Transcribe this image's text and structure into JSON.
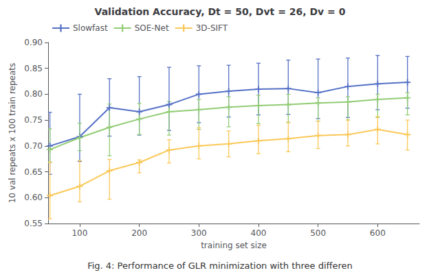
{
  "chart_data": {
    "type": "line",
    "title": "Validation Accuracy, Dt = 50, Dvt = 26, Dv = 0",
    "xlabel": "training set size",
    "ylabel": "10 val repeats x 100 train repeats",
    "caption": "Fig. 4: Performance of GLR minimization with three differen",
    "x": [
      50,
      100,
      150,
      200,
      250,
      300,
      350,
      400,
      450,
      500,
      550,
      600,
      650
    ],
    "series": [
      {
        "name": "Slowfast",
        "values": [
          0.7,
          0.718,
          0.774,
          0.766,
          0.78,
          0.8,
          0.806,
          0.81,
          0.811,
          0.803,
          0.815,
          0.82,
          0.823
        ],
        "yerr_low": [
          0.055,
          0.048,
          0.055,
          0.045,
          0.05,
          0.055,
          0.05,
          0.05,
          0.05,
          0.05,
          0.06,
          0.05,
          0.05
        ],
        "yerr_high": [
          0.065,
          0.082,
          0.056,
          0.068,
          0.072,
          0.055,
          0.05,
          0.05,
          0.055,
          0.065,
          0.055,
          0.055,
          0.05
        ]
      },
      {
        "name": "SOE-Net",
        "values": [
          0.693,
          0.716,
          0.736,
          0.752,
          0.766,
          0.77,
          0.775,
          0.778,
          0.78,
          0.783,
          0.785,
          0.79,
          0.793
        ],
        "yerr_low": [
          0.025,
          0.025,
          0.055,
          0.03,
          0.045,
          0.038,
          0.038,
          0.035,
          0.035,
          0.035,
          0.035,
          0.035,
          0.033
        ],
        "yerr_high": [
          0.04,
          0.028,
          0.045,
          0.03,
          0.02,
          0.02,
          0.02,
          0.02,
          0.02,
          0.01,
          0.01,
          0.01,
          0.01
        ]
      },
      {
        "name": "3D-SIFT",
        "values": [
          0.604,
          0.622,
          0.652,
          0.668,
          0.692,
          0.7,
          0.704,
          0.71,
          0.714,
          0.72,
          0.722,
          0.732,
          0.722
        ],
        "yerr_low": [
          0.045,
          0.03,
          0.055,
          0.02,
          0.025,
          0.025,
          0.025,
          0.025,
          0.025,
          0.025,
          0.022,
          0.028,
          0.03
        ],
        "yerr_high": [
          0.065,
          0.05,
          0.022,
          0.005,
          0.02,
          0.035,
          0.025,
          0.03,
          0.032,
          0.028,
          0.028,
          0.025,
          0.028
        ]
      }
    ],
    "xlim": [
      47,
      670
    ],
    "xticks": [
      100,
      200,
      300,
      400,
      500,
      600
    ],
    "ylim": [
      0.55,
      0.9
    ],
    "yticks": [
      0.55,
      {
        "value": 0.6,
        "label": "0.60"
      },
      0.65,
      {
        "value": 0.7,
        "label": "0.70"
      },
      0.75,
      {
        "value": 0.8,
        "label": "0.80"
      },
      0.85,
      {
        "value": 0.9,
        "label": "0.90"
      }
    ],
    "grid": false,
    "legend": "upper left",
    "marker": "plus"
  }
}
